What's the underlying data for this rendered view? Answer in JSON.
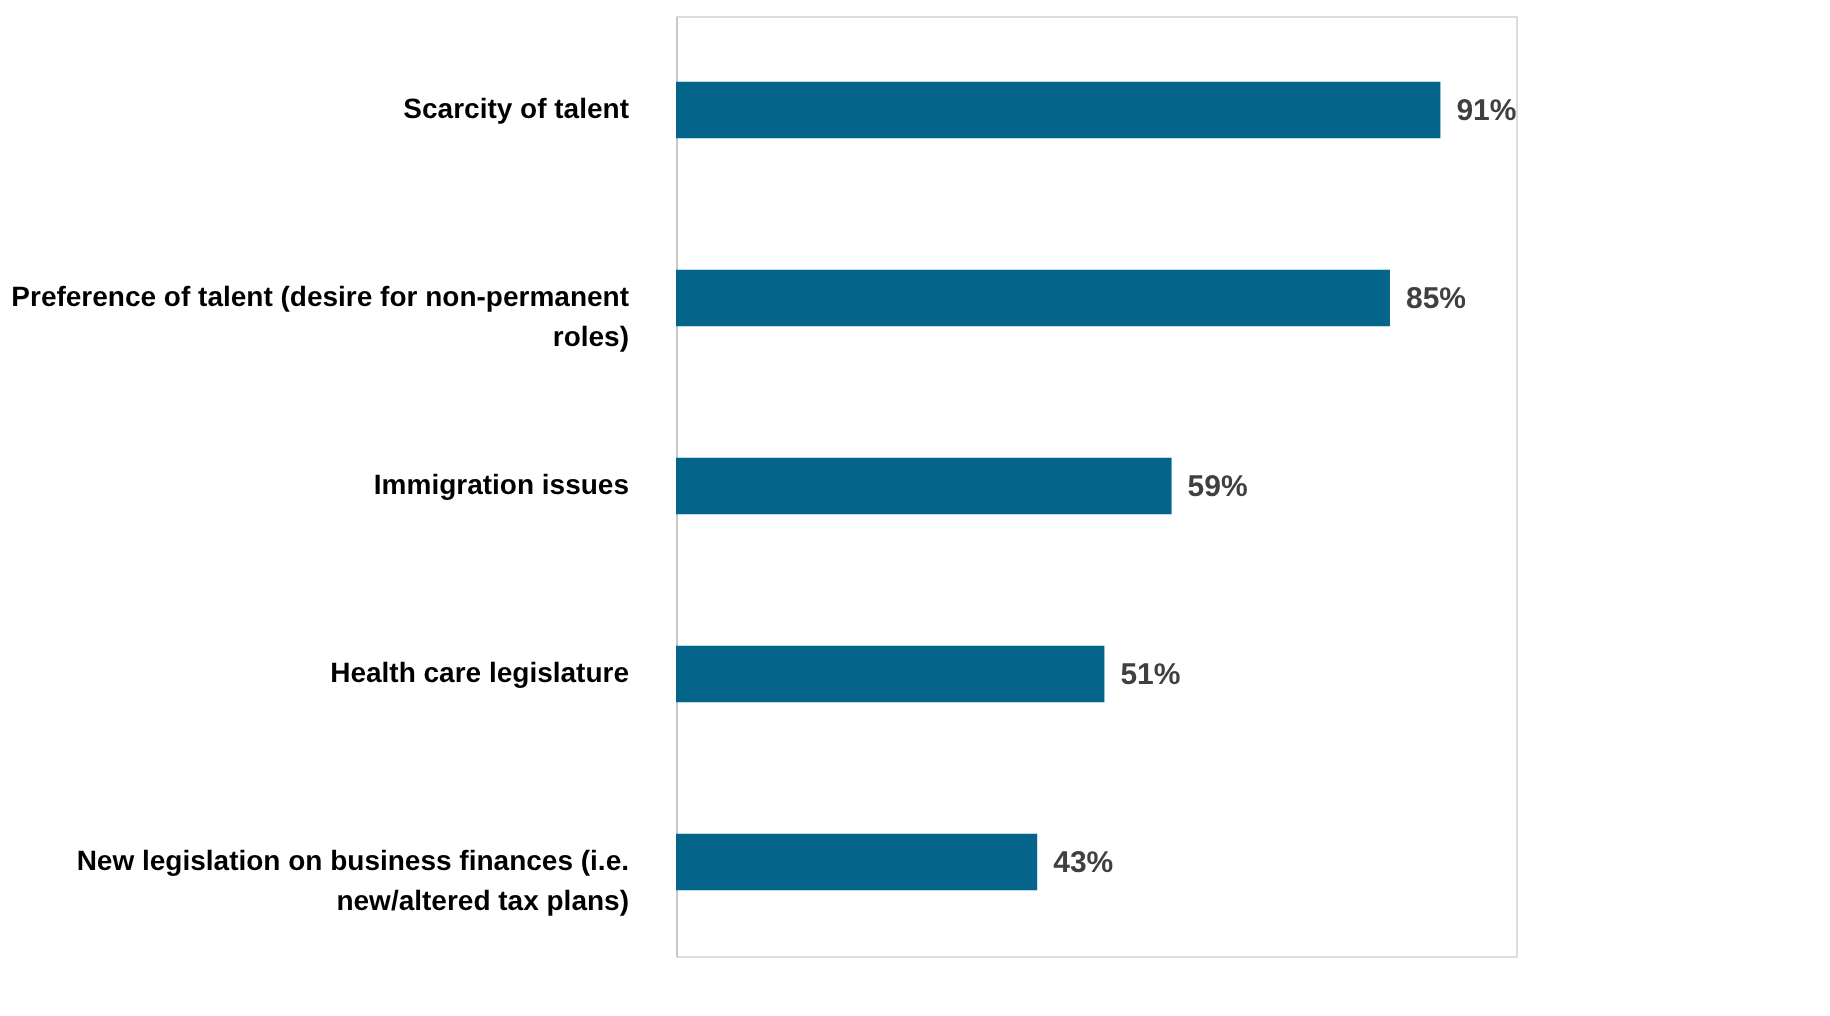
{
  "chart_data": {
    "type": "bar",
    "orientation": "horizontal",
    "categories": [
      "Scarcity of talent",
      "Preference of talent (desire for non-permanent roles)",
      "Immigration issues",
      "Health care legislature",
      "New legislation on business finances (i.e. new/altered tax plans)"
    ],
    "values": [
      91,
      85,
      59,
      51,
      43
    ],
    "value_labels": [
      "91%",
      "85%",
      "59%",
      "51%",
      "43%"
    ],
    "color": "#05648a",
    "xlim": [
      0,
      100
    ],
    "grid": false
  }
}
